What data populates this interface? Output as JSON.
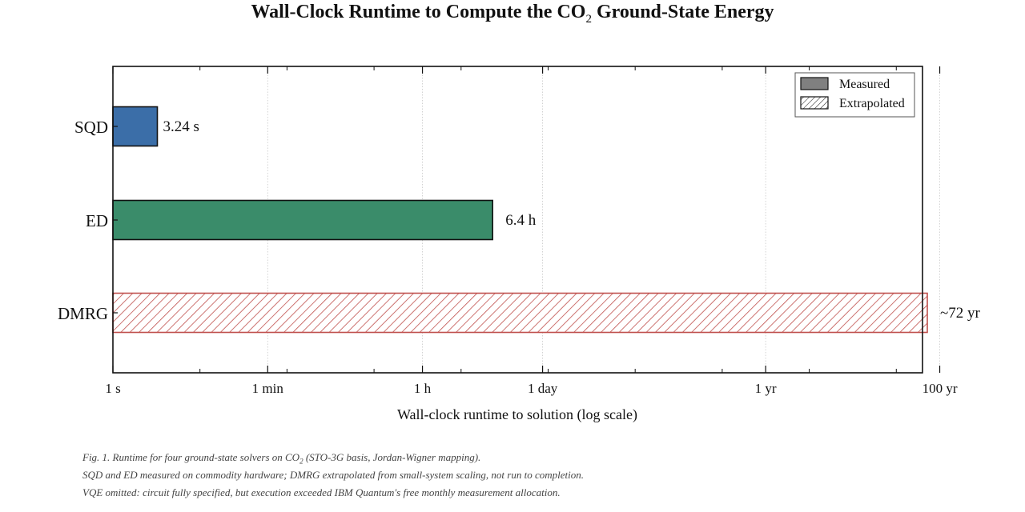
{
  "chart_data": {
    "type": "bar",
    "orientation": "horizontal",
    "title_main": "Wall-Clock Runtime to Compute the CO",
    "title_sub": "2",
    "title_rest": " Ground-State Energy",
    "xlabel": "Wall-clock runtime to solution (log scale)",
    "x_scale": "log",
    "x_unit": "seconds",
    "xlim": [
      1,
      2000000000
    ],
    "categories": [
      "SQD",
      "ED",
      "DMRG"
    ],
    "values_seconds": [
      3.24,
      23040,
      2272000000
    ],
    "value_labels": [
      "3.24 s",
      "6.4 h",
      "~72 yr"
    ],
    "bar_kind": [
      "Measured",
      "Measured",
      "Extrapolated"
    ],
    "colors": [
      "#3b6ea8",
      "#3a8c6a",
      "#c0504d"
    ],
    "ticks": [
      {
        "value": 1,
        "label": "1 s"
      },
      {
        "value": 60,
        "label": "1 min"
      },
      {
        "value": 3600,
        "label": "1 h"
      },
      {
        "value": 86400,
        "label": "1 day"
      },
      {
        "value": 31557600,
        "label": "1 yr"
      },
      {
        "value": 3155760000,
        "label": "100 yr"
      }
    ],
    "grid": "vertical dotted at major ticks",
    "legend": {
      "placement": "top-right",
      "entries": [
        {
          "label": "Measured",
          "style": "solid",
          "color": "#808080"
        },
        {
          "label": "Extrapolated",
          "style": "hatched",
          "color": "#333333"
        }
      ]
    }
  },
  "caption": {
    "line1_pre": "Fig. 1. Runtime for four ground-state solvers on CO",
    "line1_sub": "2",
    "line1_post": " (STO-3G basis, Jordan-Wigner mapping).",
    "line2": "SQD and ED measured on commodity hardware; DMRG extrapolated from small-system scaling, not run to completion.",
    "line3": "VQE omitted: circuit fully specified, but execution exceeded IBM Quantum's free monthly measurement allocation."
  }
}
